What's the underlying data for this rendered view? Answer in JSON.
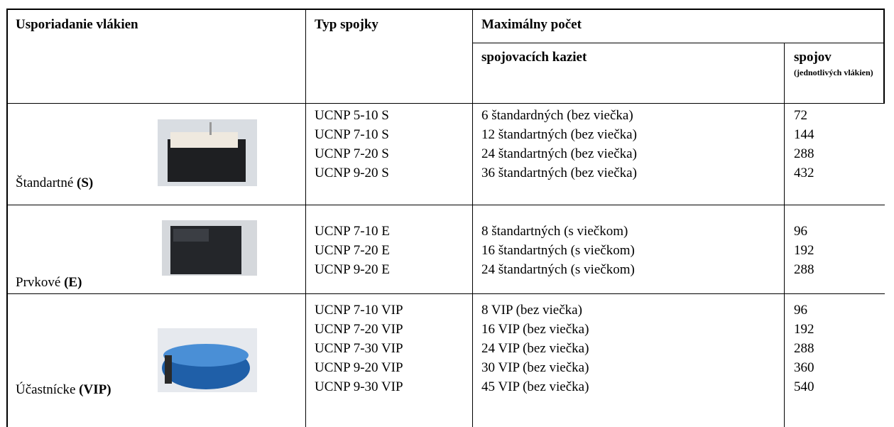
{
  "table": {
    "headers": {
      "arrangement": "Usporiadanie vlákien",
      "type": "Typ spojky",
      "max": "Maximálny počet",
      "cassettes": "spojovacích kaziet",
      "splices": "spojov",
      "splices_note": "(jednotlivých vlákien)"
    },
    "groups": [
      {
        "name": "Štandartné",
        "code": "(S)",
        "rows": [
          [
            "UCNP 5-10 S",
            "6 štandardných (bez viečka)",
            72
          ],
          [
            "UCNP 7-10 S",
            "12 štandartných (bez viečka)",
            144
          ],
          [
            "UCNP 7-20 S",
            "24 štandartných (bez viečka)",
            288
          ],
          [
            "UCNP 9-20 S",
            "36 štandartných (bez viečka)",
            432
          ]
        ]
      },
      {
        "name": "Prvkové",
        "code": "(E)",
        "rows": [
          [
            "UCNP 7-10 E",
            "8 štandartných (s viečkom)",
            96
          ],
          [
            "UCNP 7-20 E",
            "16 štandartných (s viečkom)",
            192
          ],
          [
            "UCNP 9-20 E",
            "24 štandartných (s viečkom)",
            288
          ]
        ]
      },
      {
        "name": "Účastnícke",
        "code": "(VIP)",
        "rows": [
          [
            "UCNP 7-10 VIP",
            "8 VIP (bez viečka)",
            96
          ],
          [
            "UCNP 7-20 VIP",
            "16 VIP (bez viečka)",
            192
          ],
          [
            "UCNP 7-30 VIP",
            "24 VIP (bez viečka)",
            288
          ],
          [
            "UCNP 9-20 VIP",
            "30 VIP (bez viečka)",
            360
          ],
          [
            "UCNP 9-30 VIP",
            "45 VIP (bez viečka)",
            540
          ]
        ]
      }
    ]
  }
}
